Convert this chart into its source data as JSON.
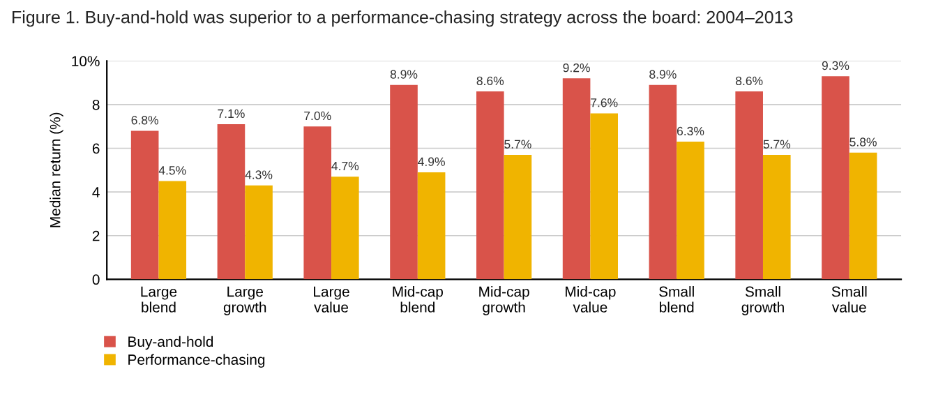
{
  "chart_data": {
    "type": "bar",
    "title": "Figure 1. Buy-and-hold was superior to a performance-chasing strategy across the board: 2004–2013",
    "ylabel": "Median return (%)",
    "categories": [
      "Large\nblend",
      "Large\ngrowth",
      "Large\nvalue",
      "Mid-cap\nblend",
      "Mid-cap\ngrowth",
      "Mid-cap\nvalue",
      "Small\nblend",
      "Small\ngrowth",
      "Small\nvalue"
    ],
    "series": [
      {
        "name": "Buy-and-hold",
        "color": "#d9534a",
        "values": [
          6.8,
          7.1,
          7.0,
          8.9,
          8.6,
          9.2,
          8.9,
          8.6,
          9.3
        ],
        "value_labels": [
          "6.8%",
          "7.1%",
          "7.0%",
          "8.9%",
          "8.6%",
          "9.2%",
          "8.9%",
          "8.6%",
          "9.3%"
        ]
      },
      {
        "name": "Performance-chasing",
        "color": "#f0b400",
        "values": [
          4.5,
          4.3,
          4.7,
          4.9,
          5.7,
          7.6,
          6.3,
          5.7,
          5.8
        ],
        "value_labels": [
          "4.5%",
          "4.3%",
          "4.7%",
          "4.9%",
          "5.7%",
          "7.6%",
          "6.3%",
          "5.7%",
          "5.8%"
        ]
      }
    ],
    "ylim": [
      0,
      10
    ],
    "yticks": [
      0,
      2,
      4,
      6,
      8,
      {
        "value": 10,
        "label": "10%"
      }
    ],
    "grid": "y",
    "legend": "bottom left"
  }
}
